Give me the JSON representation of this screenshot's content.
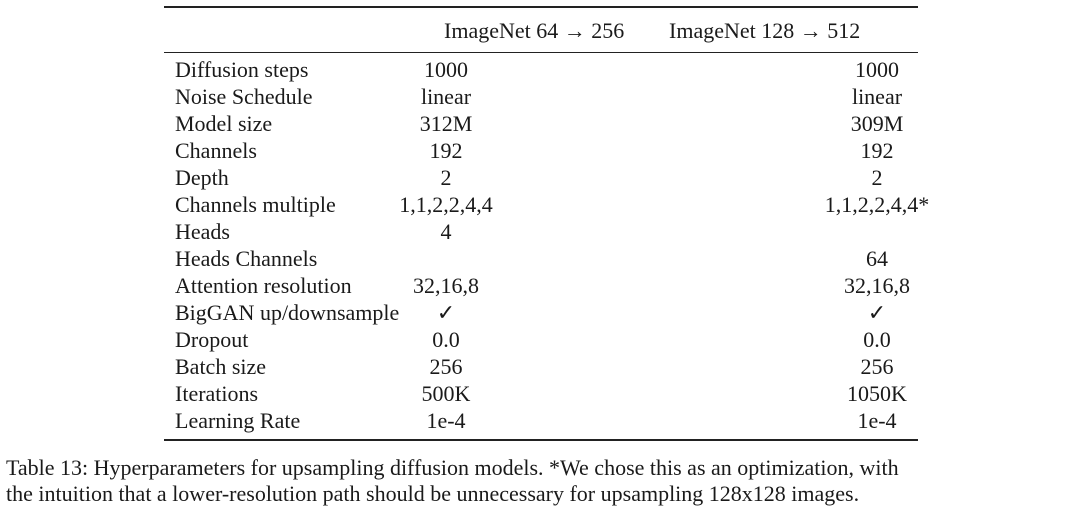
{
  "table": {
    "headers": [
      "ImageNet 64 → 256",
      "ImageNet 128 → 512"
    ],
    "rows": [
      {
        "name": "Diffusion steps",
        "v1": "1000",
        "v2": "1000"
      },
      {
        "name": "Noise Schedule",
        "v1": "linear",
        "v2": "linear"
      },
      {
        "name": "Model size",
        "v1": "312M",
        "v2": "309M"
      },
      {
        "name": "Channels",
        "v1": "192",
        "v2": "192"
      },
      {
        "name": "Depth",
        "v1": "2",
        "v2": "2"
      },
      {
        "name": "Channels multiple",
        "v1": "1,1,2,2,4,4",
        "v2": "1,1,2,2,4,4*"
      },
      {
        "name": "Heads",
        "v1": "4",
        "v2": ""
      },
      {
        "name": "Heads Channels",
        "v1": "",
        "v2": "64"
      },
      {
        "name": "Attention resolution",
        "v1": "32,16,8",
        "v2": "32,16,8"
      },
      {
        "name": "BigGAN up/downsample",
        "v1": "✓",
        "v2": "✓"
      },
      {
        "name": "Dropout",
        "v1": "0.0",
        "v2": "0.0"
      },
      {
        "name": "Batch size",
        "v1": "256",
        "v2": "256"
      },
      {
        "name": "Iterations",
        "v1": "500K",
        "v2": "1050K"
      },
      {
        "name": "Learning Rate",
        "v1": "1e-4",
        "v2": "1e-4"
      }
    ]
  },
  "caption": {
    "line1": "Table 13: Hyperparameters for upsampling diffusion models. *We chose this as an optimization, with",
    "line2": "the intuition that a lower-resolution path should be unnecessary for upsampling 128x128 images."
  }
}
